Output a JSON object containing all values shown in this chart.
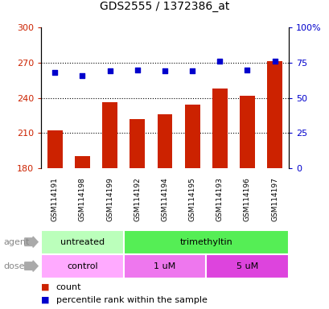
{
  "title": "GDS2555 / 1372386_at",
  "samples": [
    "GSM114191",
    "GSM114198",
    "GSM114199",
    "GSM114192",
    "GSM114194",
    "GSM114195",
    "GSM114193",
    "GSM114196",
    "GSM114197"
  ],
  "count_values": [
    212,
    190,
    236,
    222,
    226,
    234,
    248,
    242,
    271
  ],
  "percentile_values": [
    68,
    66,
    69,
    70,
    69,
    69,
    76,
    70,
    76
  ],
  "ylim_left": [
    180,
    300
  ],
  "ylim_right": [
    0,
    100
  ],
  "yticks_left": [
    180,
    210,
    240,
    270,
    300
  ],
  "yticks_right": [
    0,
    25,
    50,
    75,
    100
  ],
  "ytick_labels_right": [
    "0",
    "25",
    "50",
    "75",
    "100%"
  ],
  "bar_color": "#cc2200",
  "scatter_color": "#0000cc",
  "agent_groups": [
    {
      "label": "untreated",
      "start": 0,
      "end": 3,
      "color": "#bbffbb"
    },
    {
      "label": "trimethyltin",
      "start": 3,
      "end": 9,
      "color": "#55ee55"
    }
  ],
  "dose_groups": [
    {
      "label": "control",
      "start": 0,
      "end": 3,
      "color": "#ffaaff"
    },
    {
      "label": "1 uM",
      "start": 3,
      "end": 6,
      "color": "#ee77ee"
    },
    {
      "label": "5 uM",
      "start": 6,
      "end": 9,
      "color": "#dd44dd"
    }
  ],
  "legend_items": [
    {
      "label": "count",
      "color": "#cc2200"
    },
    {
      "label": "percentile rank within the sample",
      "color": "#0000cc"
    }
  ],
  "bar_width": 0.55,
  "dotted_grid_color": "#000000",
  "axis_left_color": "#cc2200",
  "axis_right_color": "#0000cc",
  "background_color": "#ffffff",
  "plot_bg_color": "#ffffff",
  "tick_label_area_color": "#cccccc",
  "grid_yticks": [
    210,
    240,
    270
  ]
}
